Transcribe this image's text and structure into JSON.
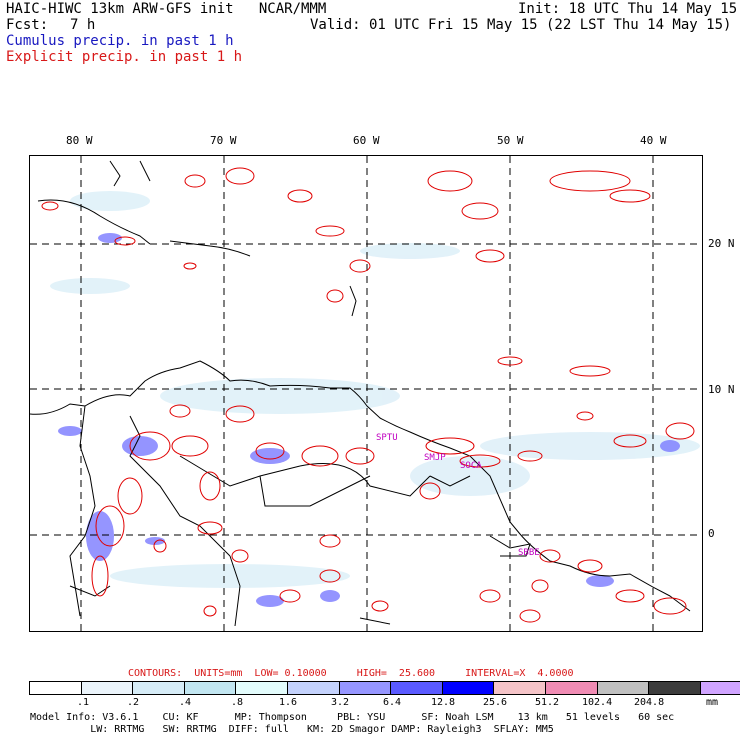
{
  "header": {
    "title": "HAIC-HIWC 13km ARW-GFS init   NCAR/MMM",
    "init": "Init: 18 UTC Thu 14 May 15",
    "fcst_label": "Fcst:",
    "fcst_value": "7 h",
    "valid": "Valid: 01 UTC Fri 15 May 15 (22 LST Thu 14 May 15)",
    "cumulus": "Cumulus precip. in past 1 h",
    "explicit": "Explicit precip. in past 1 h"
  },
  "map": {
    "lon_labels": [
      "80 W",
      "70 W",
      "60 W",
      "50 W",
      "40 W"
    ],
    "lat_labels": [
      "20 N",
      "10 N",
      "0"
    ],
    "places": [
      "SPTU",
      "SMJP",
      "SOCA",
      "SBBE"
    ],
    "colors": {
      "land": "#000000",
      "grid": "#000000",
      "explicit": "#e00000",
      "cumulus": "#5a5aff"
    }
  },
  "contours_line": "CONTOURS:  UNITS=mm  LOW= 0.10000     HIGH=  25.600     INTERVAL=X  4.0000",
  "colorbar": {
    "colors": [
      "#ffffff",
      "#ebf4fb",
      "#d6ecf7",
      "#c2e6f1",
      "#e3fcfc",
      "#c4d2fc",
      "#9696ff",
      "#5a5aff",
      "#0000ff",
      "#f5c4c8",
      "#f08cb4",
      "#c0c0c0",
      "#3c3c3c",
      "#d0a4ff"
    ],
    "labels": [
      ".1",
      ".2",
      ".4",
      ".8",
      "1.6",
      "3.2",
      "6.4",
      "12.8",
      "25.6",
      "51.2",
      "102.4",
      "204.8"
    ],
    "unit": "mm"
  },
  "model_info": {
    "line1": "Model Info: V3.6.1    CU: KF      MP: Thompson     PBL: YSU      SF: Noah LSM    13 km   51 levels   60 sec",
    "line2": "          LW: RRTMG   SW: RRTMG  DIFF: full   KM: 2D Smagor DAMP: Rayleigh3  SFLAY: MM5"
  }
}
